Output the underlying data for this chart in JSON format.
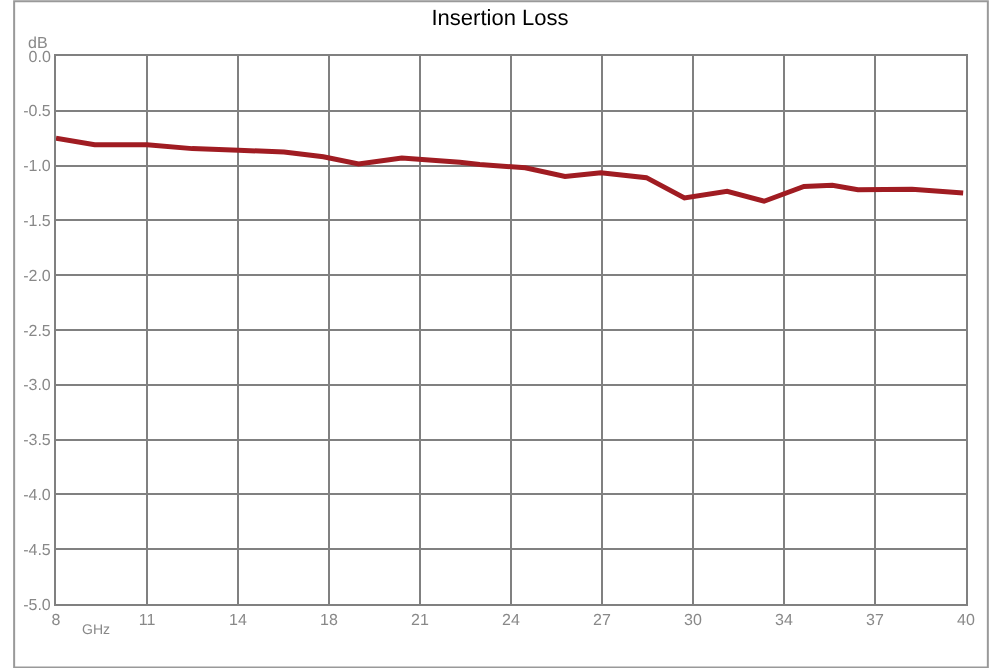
{
  "chart_data": {
    "type": "line",
    "title": "Insertion Loss",
    "xlabel": "GHz",
    "ylabel": "dB",
    "x": [
      8.0,
      9.36,
      11.2,
      12.79,
      14.42,
      16.02,
      17.4,
      18.64,
      20.16,
      22.2,
      22.9,
      24.5,
      25.9,
      27.16,
      28.76,
      30.1,
      31.6,
      32.9,
      34.3,
      35.3,
      36.2,
      38.1,
      39.9
    ],
    "series": [
      {
        "color": "#a01c22",
        "values": [
          -0.75,
          -0.81,
          -0.81,
          -0.845,
          -0.86,
          -0.875,
          -0.92,
          -0.985,
          -0.93,
          -0.97,
          -0.99,
          -1.02,
          -1.1,
          -1.065,
          -1.11,
          -1.295,
          -1.235,
          -1.325,
          -1.19,
          -1.18,
          -1.22,
          -1.215,
          -1.25
        ]
      }
    ],
    "xlim": [
      8,
      40
    ],
    "xticks": [
      8,
      {
        "value": 11.2,
        "label": "11"
      },
      {
        "value": 14.4,
        "label": "14"
      },
      {
        "value": 17.6,
        "label": "18"
      },
      {
        "value": 20.8,
        "label": "21"
      },
      24,
      {
        "value": 27.2,
        "label": "27"
      },
      {
        "value": 30.4,
        "label": "30"
      },
      {
        "value": 33.6,
        "label": "34"
      },
      {
        "value": 36.8,
        "label": "37"
      },
      40
    ],
    "ylim": [
      -5,
      0
    ],
    "yticks": [
      {
        "value": 0,
        "label": "0.0"
      },
      {
        "value": -0.5,
        "label": "-0.5"
      },
      {
        "value": -1,
        "label": "-1.0"
      },
      {
        "value": -1.5,
        "label": "-1.5"
      },
      {
        "value": -2,
        "label": "-2.0"
      },
      {
        "value": -2.5,
        "label": "-2.5"
      },
      {
        "value": -3,
        "label": "-3.0"
      },
      {
        "value": -3.5,
        "label": "-3.5"
      },
      {
        "value": -4,
        "label": "-4.0"
      },
      {
        "value": -4.5,
        "label": "-4.5"
      },
      {
        "value": -5,
        "label": "-5.0"
      }
    ],
    "grid": true,
    "legend": false,
    "marker": "none",
    "line_style": "solid"
  }
}
